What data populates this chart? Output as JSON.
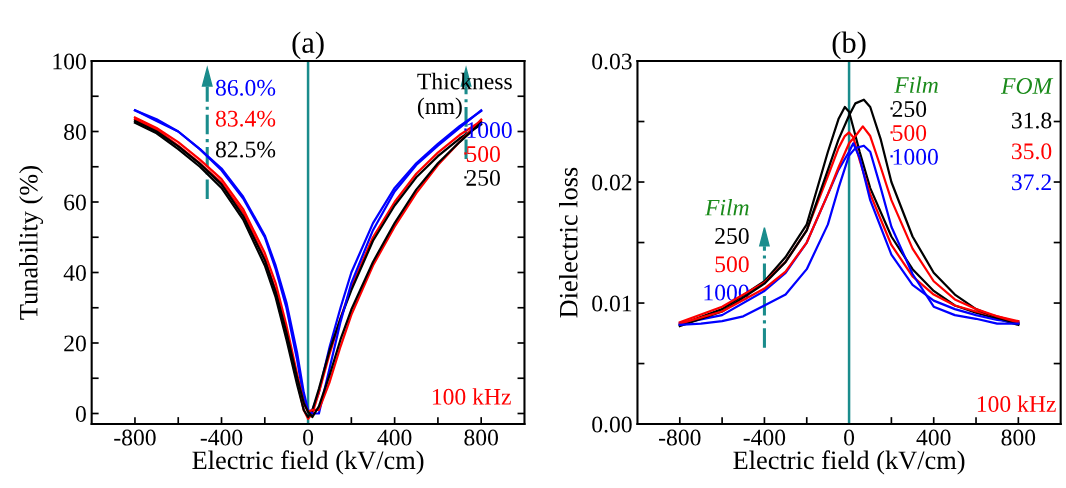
{
  "chart_data": [
    {
      "type": "line",
      "title": "(a)",
      "xlabel": "Electric field (kV/cm)",
      "ylabel": "Tunability (%)",
      "legend_title": "Thickness\n(nm)",
      "legend": "top right",
      "grid": false,
      "marker": "none",
      "line_style": "solid",
      "xlim": [
        -1000,
        1000
      ],
      "xticks": [
        -800,
        {
          "value": -600,
          "label": null
        },
        -400,
        {
          "value": -200,
          "label": null
        },
        0,
        {
          "value": 200,
          "label": null
        },
        400,
        {
          "value": 600,
          "label": null
        },
        800
      ],
      "ylim": [
        -3,
        100
      ],
      "yticks": [
        0,
        {
          "value": 10,
          "label": null
        },
        20,
        {
          "value": 30,
          "label": null
        },
        40,
        {
          "value": 50,
          "label": null
        },
        60,
        {
          "value": 70,
          "label": null
        },
        80,
        {
          "value": 90,
          "label": null
        },
        100
      ],
      "ref_lines": [
        {
          "axis": "x",
          "value": 0,
          "color": "#1a8c8c"
        }
      ],
      "annotations": [
        "86.0%",
        "83.4%",
        "82.5%",
        "100 kHz"
      ],
      "series": [
        {
          "name": "1000",
          "color": "#0000ff",
          "x": [
            -800,
            -700,
            -600,
            -500,
            -400,
            -300,
            -200,
            -150,
            -100,
            -50,
            -20,
            0,
            20,
            50,
            100,
            150,
            200,
            300,
            400,
            500,
            600,
            700,
            800
          ],
          "values": [
            86,
            83,
            80,
            75,
            69,
            61,
            50,
            41,
            30,
            15,
            4,
            0.5,
            1,
            6,
            19,
            30,
            40,
            54,
            64,
            71,
            76.5,
            81.5,
            85.8
          ]
        },
        {
          "name": "500",
          "color": "#ff0000",
          "x": [
            -800,
            -700,
            -600,
            -500,
            -400,
            -300,
            -200,
            -150,
            -100,
            -50,
            -20,
            0,
            20,
            50,
            100,
            150,
            200,
            300,
            400,
            500,
            600,
            700,
            800
          ],
          "values": [
            83.5,
            80.5,
            76,
            71,
            65.5,
            57,
            44,
            35,
            23,
            9,
            1,
            -1.5,
            0,
            6,
            17,
            27,
            36,
            50,
            60,
            68,
            74,
            79,
            83
          ]
        },
        {
          "name": "250",
          "color": "#000000",
          "x": [
            -800,
            -700,
            -600,
            -500,
            -400,
            -300,
            -200,
            -150,
            -100,
            -50,
            -20,
            0,
            20,
            50,
            100,
            150,
            200,
            300,
            400,
            500,
            600,
            700,
            800
          ],
          "values": [
            82.5,
            79.5,
            75,
            70,
            64,
            55,
            42,
            33,
            21,
            8,
            1,
            -1,
            1,
            7,
            18,
            27,
            35,
            49,
            59,
            67,
            73,
            78,
            82
          ]
        },
        {
          "color": "#0000ff",
          "x": [
            -800,
            -700,
            -600,
            -500,
            -400,
            -300,
            -200,
            -150,
            -100,
            -50,
            -20,
            0,
            20,
            50,
            100,
            150,
            200,
            300,
            400,
            500,
            600,
            700,
            800
          ],
          "values": [
            86,
            83.5,
            80,
            75,
            69.5,
            61.5,
            50.5,
            42,
            31.5,
            17,
            6,
            1,
            0,
            0,
            13,
            26,
            37,
            52,
            63,
            70.5,
            76,
            81,
            86
          ]
        },
        {
          "color": "#ff0000",
          "x": [
            -800,
            -700,
            -600,
            -500,
            -400,
            -300,
            -200,
            -150,
            -100,
            -50,
            -20,
            0,
            20,
            50,
            100,
            150,
            200,
            300,
            400,
            500,
            600,
            700,
            800
          ],
          "values": [
            84,
            81,
            77,
            72,
            66.5,
            58,
            45.5,
            37,
            25,
            11,
            3,
            0.5,
            1,
            1,
            9,
            19,
            28,
            42,
            53,
            62.5,
            70.5,
            77,
            83.4
          ]
        },
        {
          "color": "#000000",
          "x": [
            -800,
            -700,
            -600,
            -500,
            -400,
            -300,
            -200,
            -150,
            -100,
            -50,
            -20,
            0,
            20,
            50,
            100,
            150,
            200,
            300,
            400,
            500,
            600,
            700,
            800
          ],
          "values": [
            83,
            80,
            75.8,
            70.8,
            65,
            56,
            43.5,
            34.5,
            23,
            10,
            3,
            0.5,
            -1,
            2,
            11,
            21,
            29.5,
            43,
            54,
            63.5,
            71,
            77,
            82.5
          ]
        }
      ]
    },
    {
      "type": "line",
      "title": "(b)",
      "xlabel": "Electric field (kV/cm)",
      "ylabel": "Dielectric loss",
      "legend_title": "Film",
      "legend": "top right",
      "grid": false,
      "marker": "none",
      "line_style": "solid",
      "xlim": [
        -1000,
        1000
      ],
      "xticks": [
        -800,
        {
          "value": -600,
          "label": null
        },
        -400,
        {
          "value": -200,
          "label": null
        },
        0,
        {
          "value": 200,
          "label": null
        },
        400,
        {
          "value": 600,
          "label": null
        },
        800
      ],
      "ylim": [
        0,
        0.03
      ],
      "yticks": [
        {
          "value": 0,
          "label": "0.00"
        },
        {
          "value": 0.005,
          "label": null
        },
        {
          "value": 0.01,
          "label": "0.01"
        },
        {
          "value": 0.015,
          "label": null
        },
        {
          "value": 0.02,
          "label": "0.02"
        },
        {
          "value": 0.025,
          "label": null
        },
        {
          "value": 0.03,
          "label": "0.03"
        }
      ],
      "ref_lines": [
        {
          "axis": "x",
          "value": 0,
          "color": "#1a8c8c"
        }
      ],
      "annotations": [
        "FOM",
        "31.8",
        "35.0",
        "37.2",
        "Film",
        "250",
        "500",
        "1000",
        "100 kHz"
      ],
      "series": [
        {
          "name": "250",
          "color": "#000000",
          "x": [
            -800,
            -600,
            -400,
            -300,
            -200,
            -100,
            -50,
            -20,
            0,
            20,
            50,
            100,
            200,
            300,
            400,
            500,
            600,
            700,
            800
          ],
          "values": [
            0.0082,
            0.0095,
            0.0118,
            0.0138,
            0.0165,
            0.0225,
            0.0252,
            0.0262,
            0.0258,
            0.0245,
            0.0225,
            0.0195,
            0.0155,
            0.0128,
            0.011,
            0.0098,
            0.0092,
            0.0087,
            0.0082
          ]
        },
        {
          "name": "500",
          "color": "#ff0000",
          "x": [
            -800,
            -600,
            -400,
            -300,
            -200,
            -100,
            -50,
            -20,
            0,
            20,
            50,
            100,
            200,
            300,
            400,
            500,
            600,
            700,
            800
          ],
          "values": [
            0.0084,
            0.0097,
            0.0117,
            0.0134,
            0.016,
            0.0205,
            0.0228,
            0.0238,
            0.0241,
            0.0237,
            0.0218,
            0.019,
            0.0148,
            0.0122,
            0.0107,
            0.0098,
            0.0093,
            0.0089,
            0.0085
          ]
        },
        {
          "name": "1000",
          "color": "#0000ff",
          "x": [
            -800,
            -600,
            -400,
            -300,
            -200,
            -100,
            -50,
            0,
            20,
            50,
            100,
            200,
            300,
            400,
            500,
            600,
            700,
            800
          ],
          "values": [
            0.0083,
            0.009,
            0.011,
            0.0125,
            0.015,
            0.019,
            0.021,
            0.0225,
            0.0232,
            0.022,
            0.0185,
            0.014,
            0.0115,
            0.0102,
            0.0095,
            0.009,
            0.0086,
            0.0084
          ]
        },
        {
          "color": "#000000",
          "x": [
            -800,
            -600,
            -400,
            -300,
            -200,
            -100,
            -50,
            0,
            30,
            70,
            100,
            150,
            200,
            300,
            400,
            500,
            600,
            700,
            800
          ],
          "values": [
            0.0081,
            0.0093,
            0.0116,
            0.0134,
            0.016,
            0.021,
            0.0235,
            0.0255,
            0.0265,
            0.0268,
            0.0262,
            0.0235,
            0.02,
            0.0155,
            0.0125,
            0.0107,
            0.0095,
            0.0088,
            0.0083
          ]
        },
        {
          "color": "#ff0000",
          "x": [
            -800,
            -600,
            -400,
            -300,
            -200,
            -100,
            -50,
            0,
            30,
            65,
            100,
            150,
            200,
            300,
            400,
            500,
            600,
            700,
            800
          ],
          "values": [
            0.0083,
            0.0093,
            0.0112,
            0.0126,
            0.015,
            0.019,
            0.0212,
            0.0232,
            0.0238,
            0.0246,
            0.0238,
            0.0212,
            0.0185,
            0.0145,
            0.0118,
            0.0103,
            0.0095,
            0.0089,
            0.0084
          ]
        },
        {
          "color": "#0000ff",
          "x": [
            -800,
            -700,
            -600,
            -500,
            -400,
            -300,
            -200,
            -100,
            -50,
            0,
            30,
            70,
            100,
            150,
            200,
            300,
            400,
            500,
            600,
            700,
            800
          ],
          "values": [
            0.0082,
            0.0083,
            0.0085,
            0.0089,
            0.0098,
            0.0107,
            0.0128,
            0.0165,
            0.0195,
            0.0222,
            0.0228,
            0.023,
            0.0225,
            0.0195,
            0.0163,
            0.0124,
            0.0097,
            0.009,
            0.0087,
            0.0083,
            0.0083
          ]
        }
      ]
    }
  ]
}
